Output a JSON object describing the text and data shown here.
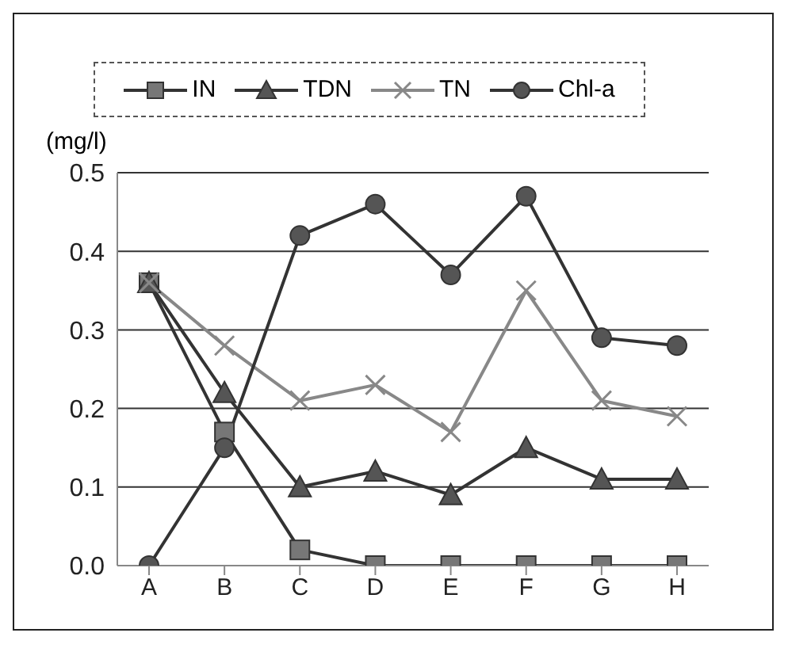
{
  "chart_data": {
    "type": "line",
    "ylabel": "(mg/l)",
    "categories": [
      "A",
      "B",
      "C",
      "D",
      "E",
      "F",
      "G",
      "H"
    ],
    "series": [
      {
        "name": "IN",
        "color": "#333333",
        "marker": "square",
        "values": [
          0.36,
          0.17,
          0.02,
          0,
          0,
          0,
          0,
          0
        ]
      },
      {
        "name": "TDN",
        "color": "#333333",
        "marker": "triangle",
        "values": [
          0.36,
          0.22,
          0.1,
          0.12,
          0.09,
          0.15,
          0.11,
          0.11
        ]
      },
      {
        "name": "TN",
        "color": "#888888",
        "marker": "cross",
        "values": [
          0.36,
          0.28,
          0.21,
          0.23,
          0.17,
          0.35,
          0.21,
          0.19
        ]
      },
      {
        "name": "Chl-a",
        "color": "#333333",
        "marker": "circle",
        "values": [
          0,
          0.15,
          0.42,
          0.46,
          0.37,
          0.47,
          0.29,
          0.28
        ]
      }
    ],
    "ylim": [
      0,
      0.5
    ],
    "yticks": [
      {
        "value": 0,
        "label": "0.0"
      },
      0.1,
      0.2,
      0.3,
      0.4,
      0.5
    ],
    "grid": "y",
    "legend": "top"
  }
}
